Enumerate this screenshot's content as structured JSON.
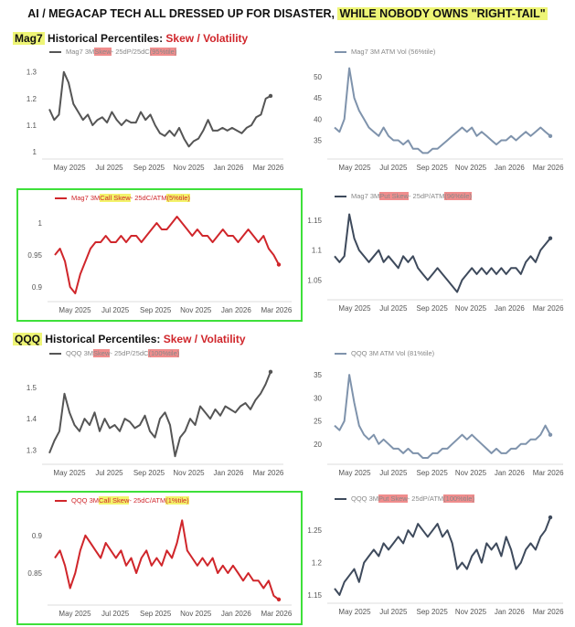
{
  "title": {
    "main": "AI / MEGACAP TECH ALL DRESSED UP FOR DISASTER, ",
    "highlight": "WHILE NOBODY OWNS \"RIGHT-TAIL\""
  },
  "sections": [
    {
      "ticker": "Mag7",
      "label": " Historical Percentiles: ",
      "red": "Skew / Volatility"
    },
    {
      "ticker": "QQQ",
      "label": " Historical Percentiles: ",
      "red": "Skew / Volatility"
    }
  ],
  "chart_data": [
    {
      "type": "line",
      "color": "#555555",
      "legend": [
        {
          "t": "Mag7 3M "
        },
        {
          "t": "Skew",
          "h": "pk"
        },
        {
          "t": " - 25dP/25dC "
        },
        {
          "t": "(95%tile)",
          "h": "pk"
        }
      ],
      "yticks": [
        "1",
        "1.1",
        "1.2",
        "1.3"
      ],
      "ylim": [
        0.98,
        1.33
      ],
      "xticks": [
        "May 2025",
        "Jul 2025",
        "Sep 2025",
        "Nov 2025",
        "Jan 2026",
        "Mar 2026"
      ],
      "values": [
        1.16,
        1.12,
        1.14,
        1.3,
        1.26,
        1.18,
        1.15,
        1.12,
        1.14,
        1.1,
        1.12,
        1.13,
        1.11,
        1.15,
        1.12,
        1.1,
        1.12,
        1.11,
        1.11,
        1.15,
        1.12,
        1.14,
        1.1,
        1.07,
        1.06,
        1.08,
        1.06,
        1.09,
        1.05,
        1.02,
        1.04,
        1.05,
        1.08,
        1.12,
        1.08,
        1.08,
        1.09,
        1.08,
        1.09,
        1.08,
        1.07,
        1.09,
        1.1,
        1.13,
        1.14,
        1.2,
        1.21
      ]
    },
    {
      "type": "line",
      "color": "#7f93ac",
      "legend": [
        {
          "t": "Mag7 3M ATM Vol (56%tile)"
        }
      ],
      "yticks": [
        "35",
        "40",
        "45",
        "50"
      ],
      "ylim": [
        31,
        53
      ],
      "xticks": [
        "May 2025",
        "Jul 2025",
        "Sep 2025",
        "Nov 2025",
        "Jan 2026",
        "Mar 2026"
      ],
      "values": [
        38,
        37,
        40,
        52,
        45,
        42,
        40,
        38,
        37,
        36,
        38,
        36,
        35,
        35,
        34,
        35,
        33,
        33,
        32,
        32,
        33,
        33,
        34,
        35,
        36,
        37,
        38,
        37,
        38,
        36,
        37,
        36,
        35,
        34,
        35,
        35,
        36,
        35,
        36,
        37,
        36,
        37,
        38,
        37,
        36
      ]
    },
    {
      "type": "line",
      "color": "#d0262b",
      "green": true,
      "legend": [
        {
          "t": "Mag7 3M "
        },
        {
          "t": "Call Skew",
          "h": "yl"
        },
        {
          "t": " - 25dC/ATM "
        },
        {
          "t": "(5%tile)",
          "h": "yl"
        }
      ],
      "yticks": [
        "0.9",
        "0.95",
        "1"
      ],
      "ylim": [
        0.88,
        1.02
      ],
      "xticks": [
        "May 2025",
        "Jul 2025",
        "Sep 2025",
        "Nov 2025",
        "Jan 2026",
        "Mar 2026"
      ],
      "values": [
        0.95,
        0.96,
        0.94,
        0.9,
        0.89,
        0.92,
        0.94,
        0.96,
        0.97,
        0.97,
        0.98,
        0.97,
        0.97,
        0.98,
        0.97,
        0.98,
        0.98,
        0.97,
        0.98,
        0.99,
        1.0,
        0.99,
        0.99,
        1.0,
        1.01,
        1.0,
        0.99,
        0.98,
        0.99,
        0.98,
        0.98,
        0.97,
        0.98,
        0.99,
        0.98,
        0.98,
        0.97,
        0.98,
        0.99,
        0.98,
        0.97,
        0.98,
        0.96,
        0.95,
        0.935
      ]
    },
    {
      "type": "line",
      "color": "#3e4a5c",
      "legend": [
        {
          "t": "Mag7 3M "
        },
        {
          "t": "Put Skew",
          "h": "pk"
        },
        {
          "t": " - 25dP/ATM "
        },
        {
          "t": "(96%tile)",
          "h": "pk"
        }
      ],
      "yticks": [
        "1.05",
        "1.1",
        "1.15"
      ],
      "ylim": [
        1.02,
        1.17
      ],
      "xticks": [
        "May 2025",
        "Jul 2025",
        "Sep 2025",
        "Nov 2025",
        "Jan 2026",
        "Mar 2026"
      ],
      "values": [
        1.09,
        1.08,
        1.09,
        1.16,
        1.12,
        1.1,
        1.09,
        1.08,
        1.09,
        1.1,
        1.08,
        1.09,
        1.08,
        1.07,
        1.09,
        1.08,
        1.09,
        1.07,
        1.06,
        1.05,
        1.06,
        1.07,
        1.06,
        1.05,
        1.04,
        1.03,
        1.05,
        1.06,
        1.07,
        1.06,
        1.07,
        1.06,
        1.07,
        1.06,
        1.07,
        1.06,
        1.07,
        1.07,
        1.06,
        1.08,
        1.09,
        1.08,
        1.1,
        1.11,
        1.12
      ]
    },
    {
      "type": "line",
      "color": "#555555",
      "legend": [
        {
          "t": "QQQ 3M "
        },
        {
          "t": "Skew",
          "h": "pk"
        },
        {
          "t": " - 25dP/25dC "
        },
        {
          "t": "(100%tile)",
          "h": "pk"
        }
      ],
      "yticks": [
        "1.3",
        "1.4",
        "1.5"
      ],
      "ylim": [
        1.26,
        1.57
      ],
      "xticks": [
        "May 2025",
        "Jul 2025",
        "Sep 2025",
        "Nov 2025",
        "Jan 2026",
        "Mar 2026"
      ],
      "values": [
        1.29,
        1.33,
        1.36,
        1.48,
        1.42,
        1.38,
        1.36,
        1.4,
        1.38,
        1.42,
        1.36,
        1.4,
        1.37,
        1.38,
        1.36,
        1.4,
        1.39,
        1.37,
        1.38,
        1.41,
        1.36,
        1.34,
        1.4,
        1.42,
        1.38,
        1.28,
        1.34,
        1.36,
        1.4,
        1.38,
        1.44,
        1.42,
        1.4,
        1.43,
        1.41,
        1.44,
        1.43,
        1.42,
        1.44,
        1.45,
        1.43,
        1.46,
        1.48,
        1.51,
        1.55
      ]
    },
    {
      "type": "line",
      "color": "#7f93ac",
      "legend": [
        {
          "t": "QQQ 3M ATM Vol (81%tile)"
        }
      ],
      "yticks": [
        "20",
        "25",
        "30",
        "35"
      ],
      "ylim": [
        16,
        37
      ],
      "xticks": [
        "May 2025",
        "Jul 2025",
        "Sep 2025",
        "Nov 2025",
        "Jan 2026",
        "Mar 2026"
      ],
      "values": [
        24,
        23,
        25,
        35,
        29,
        24,
        22,
        21,
        22,
        20,
        21,
        20,
        19,
        19,
        18,
        19,
        18,
        18,
        17,
        17,
        18,
        18,
        19,
        19,
        20,
        21,
        22,
        21,
        22,
        21,
        20,
        19,
        18,
        19,
        18,
        18,
        19,
        19,
        20,
        20,
        21,
        21,
        22,
        24,
        22
      ]
    },
    {
      "type": "line",
      "color": "#d0262b",
      "green": true,
      "legend": [
        {
          "t": "QQQ 3M "
        },
        {
          "t": "Call Skew",
          "h": "yl"
        },
        {
          "t": " - 25dC/ATM "
        },
        {
          "t": "(1%tile)",
          "h": "yl"
        }
      ],
      "yticks": [
        "0.85",
        "0.9"
      ],
      "ylim": [
        0.81,
        0.93
      ],
      "xticks": [
        "May 2025",
        "Jul 2025",
        "Sep 2025",
        "Nov 2025",
        "Jan 2026",
        "Mar 2026"
      ],
      "values": [
        0.87,
        0.88,
        0.86,
        0.83,
        0.85,
        0.88,
        0.9,
        0.89,
        0.88,
        0.87,
        0.89,
        0.88,
        0.87,
        0.88,
        0.86,
        0.87,
        0.85,
        0.87,
        0.88,
        0.86,
        0.87,
        0.86,
        0.88,
        0.87,
        0.89,
        0.92,
        0.88,
        0.87,
        0.86,
        0.87,
        0.86,
        0.87,
        0.85,
        0.86,
        0.85,
        0.86,
        0.85,
        0.84,
        0.85,
        0.84,
        0.84,
        0.83,
        0.84,
        0.82,
        0.815
      ]
    },
    {
      "type": "line",
      "color": "#3e4a5c",
      "legend": [
        {
          "t": "QQQ 3M "
        },
        {
          "t": "Put Skew",
          "h": "pk"
        },
        {
          "t": " - 25dP/ATM "
        },
        {
          "t": "(100%tile)",
          "h": "pk"
        }
      ],
      "yticks": [
        "1.15",
        "1.2",
        "1.25"
      ],
      "ylim": [
        1.14,
        1.28
      ],
      "xticks": [
        "May 2025",
        "Jul 2025",
        "Sep 2025",
        "Nov 2025",
        "Jan 2026",
        "Mar 2026"
      ],
      "values": [
        1.16,
        1.15,
        1.17,
        1.18,
        1.19,
        1.17,
        1.2,
        1.21,
        1.22,
        1.21,
        1.23,
        1.22,
        1.23,
        1.24,
        1.23,
        1.25,
        1.24,
        1.26,
        1.25,
        1.24,
        1.25,
        1.26,
        1.24,
        1.25,
        1.23,
        1.19,
        1.2,
        1.19,
        1.21,
        1.22,
        1.2,
        1.23,
        1.22,
        1.23,
        1.21,
        1.24,
        1.22,
        1.19,
        1.2,
        1.22,
        1.23,
        1.22,
        1.24,
        1.25,
        1.27
      ]
    }
  ]
}
